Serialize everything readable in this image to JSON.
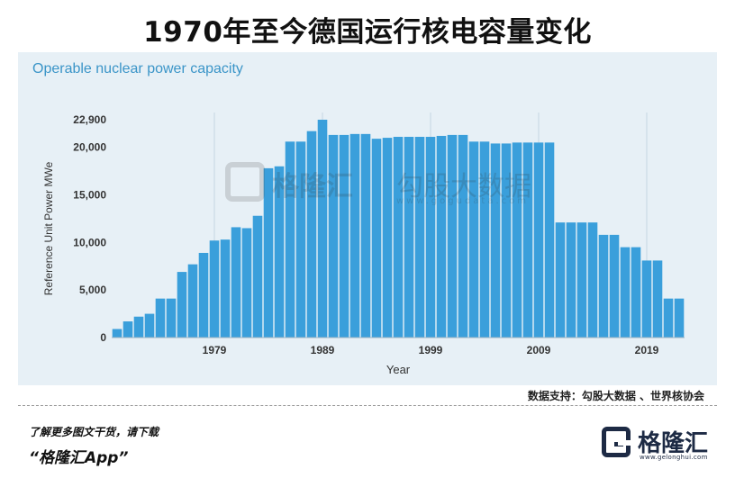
{
  "header": {
    "title": "1970年至今德国运行核电容量变化"
  },
  "chart_data": {
    "type": "bar",
    "title": "Operable nuclear power capacity",
    "xlabel": "Year",
    "ylabel": "Reference Unit Power MWe",
    "ylim": [
      0,
      22900
    ],
    "yticks": [
      0,
      5000,
      10000,
      15000,
      20000,
      22900
    ],
    "ytick_labels": [
      "0",
      "5,000",
      "10,000",
      "15,000",
      "20,000",
      "22,900"
    ],
    "xticks": [
      1979,
      1989,
      1999,
      2009,
      2019
    ],
    "xtick_labels": [
      "1979",
      "1989",
      "1999",
      "2009",
      "2019"
    ],
    "grid": "vertical",
    "bar_color": "#3a9fdb",
    "categories": [
      1970,
      1971,
      1972,
      1973,
      1974,
      1975,
      1976,
      1977,
      1978,
      1979,
      1980,
      1981,
      1982,
      1983,
      1984,
      1985,
      1986,
      1987,
      1988,
      1989,
      1990,
      1991,
      1992,
      1993,
      1994,
      1995,
      1996,
      1997,
      1998,
      1999,
      2000,
      2001,
      2002,
      2003,
      2004,
      2005,
      2006,
      2007,
      2008,
      2009,
      2010,
      2011,
      2012,
      2013,
      2014,
      2015,
      2016,
      2017,
      2018,
      2019,
      2020,
      2021,
      2022
    ],
    "values": [
      900,
      1700,
      2200,
      2500,
      4100,
      4100,
      6900,
      7700,
      8900,
      10200,
      10300,
      11600,
      11500,
      12800,
      17800,
      18000,
      20600,
      20600,
      21700,
      22900,
      21300,
      21300,
      21400,
      21400,
      20900,
      21000,
      21100,
      21100,
      21100,
      21100,
      21200,
      21300,
      21300,
      20600,
      20600,
      20400,
      20400,
      20500,
      20500,
      20500,
      20500,
      12100,
      12100,
      12100,
      12100,
      10800,
      10800,
      9500,
      9500,
      8100,
      8100,
      4100,
      4100
    ]
  },
  "watermark": {
    "brand": "格隆汇",
    "partner": "勾股大数据",
    "url": "www.gogudata.com"
  },
  "source_note": "数据支持：勾股大数据 、世界核协会",
  "footer": {
    "promo": "了解更多图文干货，请下载",
    "app_name": "“格隆汇App”",
    "brand_name": "格隆汇",
    "brand_url": "www.gelonghui.com"
  }
}
